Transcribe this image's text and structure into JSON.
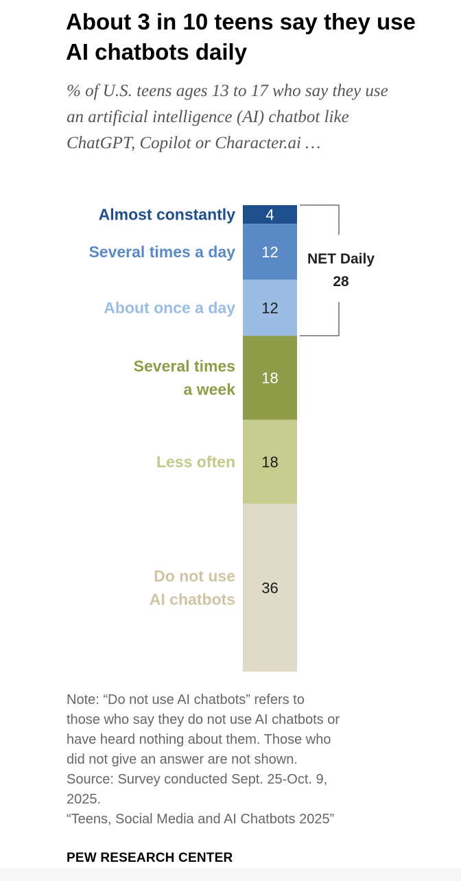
{
  "title": "About 3 in 10 teens say they use AI chatbots daily",
  "subtitle": "% of U.S. teens ages 13 to 17 who say they use an artificial intelligence (AI) chatbot like ChatGPT, Copilot or Character.ai …",
  "chart_data": {
    "type": "stacked-bar",
    "title": "About 3 in 10 teens say they use AI chatbots daily",
    "subtitle": "% of U.S. teens ages 13 to 17 who say they use an artificial intelligence (AI) chatbot like ChatGPT, Copilot or Character.ai …",
    "unit": "%",
    "segments": [
      {
        "key": "almost_constantly",
        "label_lines": [
          "Almost constantly"
        ],
        "value": 4,
        "color": "#1f4e8c",
        "label_color": "#1f4e8c",
        "value_color": "#ffffff"
      },
      {
        "key": "several_times_a_day",
        "label_lines": [
          "Several times a day"
        ],
        "value": 12,
        "color": "#5a8ac6",
        "label_color": "#5a8ac6",
        "value_color": "#ffffff"
      },
      {
        "key": "about_once_a_day",
        "label_lines": [
          "About once a day"
        ],
        "value": 12,
        "color": "#9cbde3",
        "label_color": "#9cbde3",
        "value_color": "#1a1a1a"
      },
      {
        "key": "several_times_a_week",
        "label_lines": [
          "Several times",
          "a week"
        ],
        "value": 18,
        "color": "#8e9b48",
        "label_color": "#8e9b48",
        "value_color": "#ffffff"
      },
      {
        "key": "less_often",
        "label_lines": [
          "Less often"
        ],
        "value": 18,
        "color": "#c6cc8e",
        "label_color": "#c4c98b",
        "value_color": "#1a1a1a"
      },
      {
        "key": "do_not_use",
        "label_lines": [
          "Do not use",
          "AI chatbots"
        ],
        "value": 36,
        "color": "#e0dbc9",
        "label_color": "#cec5a4",
        "value_color": "#1a1a1a"
      }
    ],
    "net": {
      "label": "NET Daily",
      "value": 28,
      "spans": [
        "almost_constantly",
        "several_times_a_day",
        "about_once_a_day"
      ]
    }
  },
  "note_lines": [
    "Note: “Do not use AI chatbots” refers to",
    "those who say they do not use AI chatbots or",
    "have heard nothing about them. Those who",
    "did not give an answer are not shown."
  ],
  "source_lines": [
    "Source: Survey conducted Sept. 25-Oct. 9,",
    "2025."
  ],
  "report_title": "“Teens, Social Media and AI Chatbots 2025”",
  "logo_text": "PEW RESEARCH CENTER"
}
